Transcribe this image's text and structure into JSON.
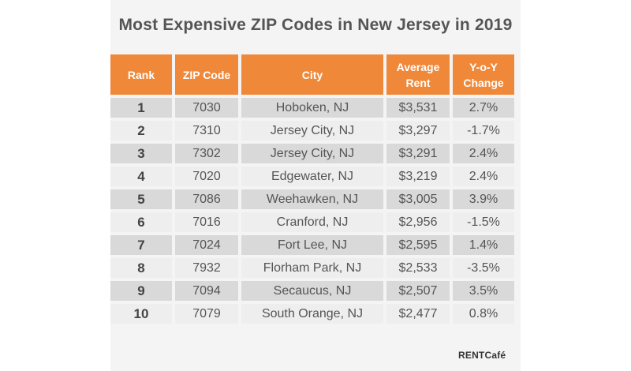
{
  "title": "Most Expensive ZIP Codes in New Jersey in 2019",
  "columns": {
    "rank": "Rank",
    "zip": "ZIP Code",
    "city": "City",
    "rent_line1": "Average",
    "rent_line2": "Rent",
    "yoy_line1": "Y-o-Y",
    "yoy_line2": "Change"
  },
  "rows": [
    {
      "rank": "1",
      "zip": "7030",
      "city": "Hoboken, NJ",
      "rent": "$3,531",
      "yoy": "2.7%"
    },
    {
      "rank": "2",
      "zip": "7310",
      "city": "Jersey City, NJ",
      "rent": "$3,297",
      "yoy": "-1.7%"
    },
    {
      "rank": "3",
      "zip": "7302",
      "city": "Jersey City, NJ",
      "rent": "$3,291",
      "yoy": "2.4%"
    },
    {
      "rank": "4",
      "zip": "7020",
      "city": "Edgewater, NJ",
      "rent": "$3,219",
      "yoy": "2.4%"
    },
    {
      "rank": "5",
      "zip": "7086",
      "city": "Weehawken, NJ",
      "rent": "$3,005",
      "yoy": "3.9%"
    },
    {
      "rank": "6",
      "zip": "7016",
      "city": "Cranford, NJ",
      "rent": "$2,956",
      "yoy": "-1.5%"
    },
    {
      "rank": "7",
      "zip": "7024",
      "city": "Fort Lee, NJ",
      "rent": "$2,595",
      "yoy": "1.4%"
    },
    {
      "rank": "8",
      "zip": "7932",
      "city": "Florham Park, NJ",
      "rent": "$2,533",
      "yoy": "-3.5%"
    },
    {
      "rank": "9",
      "zip": "7094",
      "city": "Secaucus, NJ",
      "rent": "$2,507",
      "yoy": "3.5%"
    },
    {
      "rank": "10",
      "zip": "7079",
      "city": "South Orange, NJ",
      "rent": "$2,477",
      "yoy": "0.8%"
    }
  ],
  "brand": {
    "logo_text": "RENTCafé",
    "accent_color": "#f0883a"
  }
}
